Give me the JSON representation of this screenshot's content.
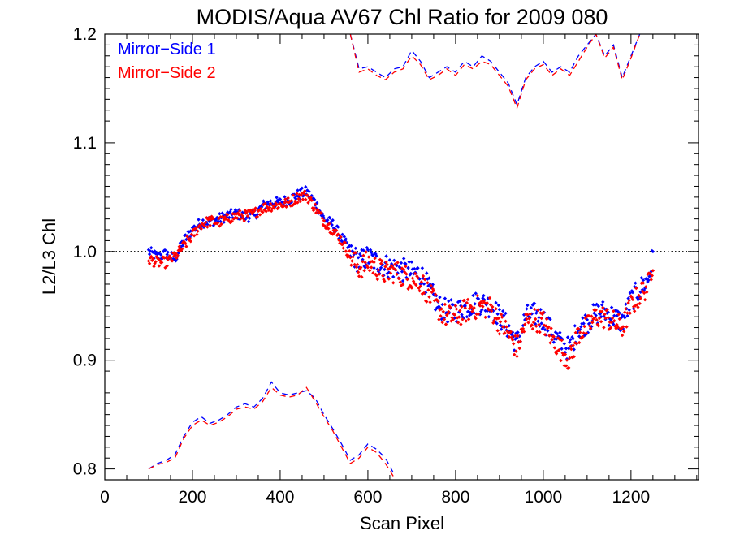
{
  "chart_data": {
    "type": "scatter",
    "title": "MODIS/Aqua AV67 Chl Ratio for 2009 080",
    "xlabel": "Scan Pixel",
    "ylabel": "L2/L3 Chl",
    "xlim": [
      0,
      1354
    ],
    "ylim": [
      0.79,
      1.2
    ],
    "xticks": [
      0,
      200,
      400,
      600,
      800,
      1000,
      1200
    ],
    "xtick_labels": [
      "0",
      "200",
      "400",
      "600",
      "800",
      "1000",
      "1200"
    ],
    "yticks": [
      0.8,
      0.9,
      1.0,
      1.1,
      1.2
    ],
    "ytick_labels": [
      "0.8",
      "0.9",
      "1.0",
      "1.1",
      "1.2"
    ],
    "reference_line": 1.0,
    "legend_placement": "top-left",
    "series": [
      {
        "name": "Mirror−Side 1",
        "color": "#0000ff",
        "x": [
          100,
          120,
          140,
          160,
          180,
          200,
          220,
          240,
          260,
          280,
          300,
          320,
          340,
          360,
          380,
          400,
          420,
          440,
          460,
          480,
          500,
          520,
          540,
          560,
          580,
          600,
          620,
          640,
          660,
          680,
          700,
          720,
          740,
          760,
          780,
          800,
          820,
          840,
          860,
          880,
          900,
          920,
          940,
          960,
          980,
          1000,
          1020,
          1040,
          1060,
          1080,
          1100,
          1120,
          1140,
          1160,
          1180,
          1200,
          1220,
          1240,
          1250
        ],
        "y": [
          1.0,
          0.995,
          0.998,
          0.993,
          1.01,
          1.02,
          1.027,
          1.028,
          1.03,
          1.033,
          1.035,
          1.032,
          1.033,
          1.042,
          1.045,
          1.045,
          1.048,
          1.052,
          1.055,
          1.045,
          1.03,
          1.025,
          1.013,
          1.0,
          0.99,
          0.995,
          0.99,
          0.987,
          0.985,
          0.983,
          0.98,
          0.98,
          0.965,
          0.95,
          0.945,
          0.945,
          0.948,
          0.952,
          0.953,
          0.95,
          0.94,
          0.93,
          0.915,
          0.94,
          0.942,
          0.938,
          0.925,
          0.915,
          0.91,
          0.93,
          0.935,
          0.943,
          0.945,
          0.94,
          0.935,
          0.955,
          0.965,
          0.975,
          0.995
        ],
        "upper_dashed_y": [
          null,
          null,
          null,
          null,
          null,
          null,
          null,
          null,
          null,
          null,
          null,
          null,
          null,
          null,
          null,
          null,
          null,
          null,
          null,
          null,
          null,
          null,
          null,
          1.2,
          1.168,
          1.17,
          1.165,
          1.16,
          1.168,
          1.17,
          1.185,
          1.175,
          1.16,
          1.165,
          1.17,
          1.165,
          1.175,
          1.17,
          1.18,
          1.175,
          1.165,
          1.155,
          1.135,
          1.16,
          1.17,
          1.175,
          1.165,
          1.17,
          1.165,
          1.18,
          1.19,
          1.2,
          1.18,
          1.19,
          1.16,
          1.18,
          1.2,
          null,
          null
        ],
        "lower_dashed_y": [
          0.8,
          0.805,
          0.808,
          0.813,
          0.83,
          0.843,
          0.848,
          0.842,
          0.845,
          0.85,
          0.857,
          0.86,
          0.857,
          0.865,
          0.88,
          0.87,
          0.868,
          0.87,
          0.872,
          0.865,
          0.85,
          0.837,
          0.823,
          0.808,
          0.813,
          0.823,
          0.818,
          0.81,
          0.795,
          null,
          null,
          null,
          null,
          null,
          null,
          null,
          null,
          null,
          null,
          null,
          null,
          null,
          null,
          null,
          null,
          null,
          null,
          null,
          null,
          null,
          null,
          null,
          null,
          null,
          null,
          null,
          null,
          null,
          null
        ]
      },
      {
        "name": "Mirror−Side 2",
        "color": "#ff0000",
        "x": [
          100,
          120,
          140,
          160,
          180,
          200,
          220,
          240,
          260,
          280,
          300,
          320,
          340,
          360,
          380,
          400,
          420,
          440,
          460,
          480,
          500,
          520,
          540,
          560,
          580,
          600,
          620,
          640,
          660,
          680,
          700,
          720,
          740,
          760,
          780,
          800,
          820,
          840,
          860,
          880,
          900,
          920,
          940,
          960,
          980,
          1000,
          1020,
          1040,
          1060,
          1080,
          1100,
          1120,
          1140,
          1160,
          1180,
          1200,
          1220,
          1240,
          1250
        ],
        "y": [
          0.993,
          0.99,
          0.99,
          0.995,
          1.005,
          1.015,
          1.025,
          1.028,
          1.027,
          1.03,
          1.033,
          1.033,
          1.035,
          1.04,
          1.042,
          1.043,
          1.045,
          1.05,
          1.052,
          1.04,
          1.028,
          1.02,
          1.01,
          0.995,
          0.985,
          0.99,
          0.985,
          0.98,
          0.982,
          0.978,
          0.975,
          0.973,
          0.96,
          0.948,
          0.94,
          0.94,
          0.945,
          0.948,
          0.95,
          0.948,
          0.935,
          0.925,
          0.91,
          0.935,
          0.938,
          0.935,
          0.92,
          0.91,
          0.9,
          0.925,
          0.93,
          0.94,
          0.94,
          0.935,
          0.93,
          0.95,
          0.96,
          0.97,
          0.992
        ],
        "upper_dashed_y": [
          null,
          null,
          null,
          null,
          null,
          null,
          null,
          null,
          null,
          null,
          null,
          null,
          null,
          null,
          null,
          null,
          null,
          null,
          null,
          null,
          null,
          null,
          null,
          1.2,
          1.165,
          1.168,
          1.162,
          1.158,
          1.165,
          1.168,
          1.18,
          1.172,
          1.158,
          1.162,
          1.168,
          1.162,
          1.172,
          1.168,
          1.175,
          1.172,
          1.162,
          1.152,
          1.132,
          1.158,
          1.168,
          1.172,
          1.162,
          1.168,
          1.162,
          1.175,
          1.188,
          1.2,
          1.178,
          1.188,
          1.158,
          1.178,
          1.2,
          null,
          null
        ],
        "lower_dashed_y": [
          0.8,
          0.804,
          0.806,
          0.81,
          0.828,
          0.84,
          0.845,
          0.84,
          0.843,
          0.848,
          0.855,
          0.857,
          0.855,
          0.862,
          0.875,
          0.868,
          0.866,
          0.868,
          0.875,
          0.862,
          0.848,
          0.835,
          0.82,
          0.805,
          0.81,
          0.82,
          0.815,
          0.805,
          0.792,
          null,
          null,
          null,
          null,
          null,
          null,
          null,
          null,
          null,
          null,
          null,
          null,
          null,
          null,
          null,
          null,
          null,
          null,
          null,
          null,
          null,
          null,
          null,
          null,
          null,
          null,
          null,
          null,
          null,
          null
        ]
      }
    ]
  }
}
